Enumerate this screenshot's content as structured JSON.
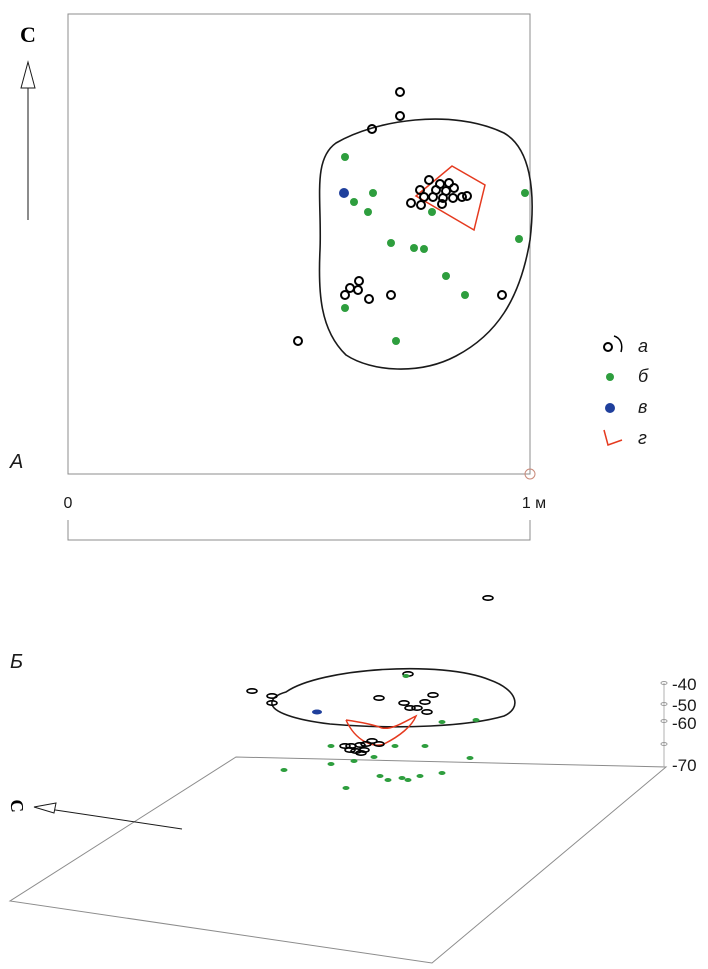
{
  "panel_a": {
    "label": "А",
    "north_label": "С",
    "scale": {
      "start": "0",
      "end": "1 м"
    }
  },
  "legend": [
    {
      "key": "а",
      "symbol": "open-circle-and-arc",
      "color": "#000000"
    },
    {
      "key": "б",
      "symbol": "filled-circle",
      "color": "#2e9e3e"
    },
    {
      "key": "в",
      "symbol": "filled-circle",
      "color": "#1f3f9c"
    },
    {
      "key": "г",
      "symbol": "red-outline",
      "color": "#e53a1f"
    }
  ],
  "panel_b": {
    "label": "Б",
    "north_label": "С",
    "depth_axis": [
      "-40",
      "-50",
      "-60",
      "-70"
    ]
  },
  "colors": {
    "line": "#1a1a1a",
    "green": "#2e9e3e",
    "blue": "#1f3f9c",
    "red": "#e53a1f",
    "frame": "#8c8c8c"
  }
}
